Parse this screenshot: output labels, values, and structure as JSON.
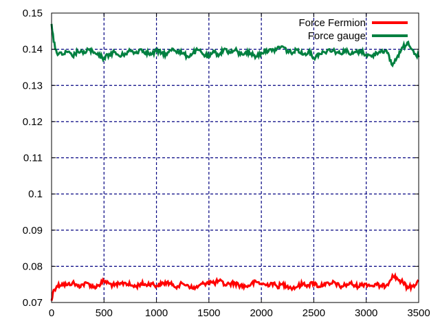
{
  "chart_data": {
    "type": "line",
    "title": "",
    "xlabel": "",
    "ylabel": "",
    "xlim": [
      0,
      3500
    ],
    "ylim": [
      0.07,
      0.15
    ],
    "x_ticks": [
      {
        "value": 0,
        "label": "0"
      },
      {
        "value": 500,
        "label": "500"
      },
      {
        "value": 1000,
        "label": "1000"
      },
      {
        "value": 1500,
        "label": "1500"
      },
      {
        "value": 2000,
        "label": "2000"
      },
      {
        "value": 2500,
        "label": "2500"
      },
      {
        "value": 3000,
        "label": "3000"
      },
      {
        "value": 3500,
        "label": "3500"
      }
    ],
    "y_ticks": [
      {
        "value": 0.07,
        "label": "0.07"
      },
      {
        "value": 0.08,
        "label": "0.08"
      },
      {
        "value": 0.09,
        "label": "0.09"
      },
      {
        "value": 0.1,
        "label": "0.1"
      },
      {
        "value": 0.11,
        "label": "0.11"
      },
      {
        "value": 0.12,
        "label": "0.12"
      },
      {
        "value": 0.13,
        "label": "0.13"
      },
      {
        "value": 0.14,
        "label": "0.14"
      },
      {
        "value": 0.15,
        "label": "0.15"
      }
    ],
    "grid": true,
    "legend_position": "top-right",
    "series": [
      {
        "name": "Force Fermion",
        "color": "#ff0000",
        "x": [
          0,
          20,
          50,
          100,
          150,
          200,
          250,
          300,
          350,
          400,
          450,
          500,
          550,
          600,
          650,
          700,
          750,
          800,
          850,
          900,
          950,
          1000,
          1050,
          1100,
          1150,
          1200,
          1250,
          1300,
          1350,
          1400,
          1450,
          1500,
          1550,
          1600,
          1650,
          1700,
          1750,
          1800,
          1850,
          1900,
          1950,
          2000,
          2050,
          2100,
          2150,
          2200,
          2250,
          2300,
          2350,
          2400,
          2450,
          2500,
          2550,
          2600,
          2650,
          2700,
          2750,
          2800,
          2850,
          2900,
          2950,
          3000,
          3050,
          3100,
          3150,
          3200,
          3250,
          3300,
          3350,
          3400,
          3450,
          3500
        ],
        "y": [
          0.0705,
          0.0735,
          0.0745,
          0.0752,
          0.0748,
          0.0755,
          0.0745,
          0.075,
          0.0753,
          0.0742,
          0.0748,
          0.076,
          0.0752,
          0.0747,
          0.075,
          0.0755,
          0.0748,
          0.0744,
          0.0752,
          0.0749,
          0.0753,
          0.0746,
          0.0751,
          0.0756,
          0.0748,
          0.0745,
          0.0752,
          0.0748,
          0.0738,
          0.0745,
          0.0752,
          0.0758,
          0.0753,
          0.076,
          0.0749,
          0.0752,
          0.0754,
          0.0747,
          0.0744,
          0.075,
          0.0757,
          0.0752,
          0.0748,
          0.0754,
          0.0744,
          0.075,
          0.0746,
          0.074,
          0.0745,
          0.0752,
          0.0748,
          0.0755,
          0.0744,
          0.0752,
          0.0749,
          0.0756,
          0.0743,
          0.0748,
          0.0753,
          0.0745,
          0.0748,
          0.0752,
          0.0746,
          0.0749,
          0.0744,
          0.075,
          0.0775,
          0.0765,
          0.0755,
          0.074,
          0.0748,
          0.0758
        ]
      },
      {
        "name": "Force gauge",
        "color": "#008040",
        "x": [
          0,
          20,
          50,
          100,
          150,
          200,
          250,
          300,
          350,
          400,
          450,
          500,
          550,
          600,
          650,
          700,
          750,
          800,
          850,
          900,
          950,
          1000,
          1050,
          1100,
          1150,
          1200,
          1250,
          1300,
          1350,
          1400,
          1450,
          1500,
          1550,
          1600,
          1650,
          1700,
          1750,
          1800,
          1850,
          1900,
          1950,
          2000,
          2050,
          2100,
          2150,
          2200,
          2250,
          2300,
          2350,
          2400,
          2450,
          2500,
          2550,
          2600,
          2650,
          2700,
          2750,
          2800,
          2850,
          2900,
          2950,
          3000,
          3050,
          3100,
          3150,
          3200,
          3250,
          3300,
          3350,
          3400,
          3450,
          3500
        ],
        "y": [
          0.147,
          0.142,
          0.139,
          0.1385,
          0.1392,
          0.138,
          0.1395,
          0.1388,
          0.14,
          0.139,
          0.1382,
          0.1375,
          0.1386,
          0.1392,
          0.138,
          0.1388,
          0.1396,
          0.139,
          0.14,
          0.1392,
          0.1385,
          0.1395,
          0.139,
          0.1385,
          0.1402,
          0.1395,
          0.1388,
          0.138,
          0.139,
          0.1398,
          0.1385,
          0.1378,
          0.1392,
          0.1385,
          0.1402,
          0.139,
          0.1398,
          0.1385,
          0.1392,
          0.1388,
          0.138,
          0.139,
          0.1398,
          0.1395,
          0.1402,
          0.1408,
          0.1395,
          0.139,
          0.14,
          0.1385,
          0.1395,
          0.1375,
          0.1388,
          0.1392,
          0.14,
          0.1395,
          0.1388,
          0.1398,
          0.1385,
          0.1392,
          0.1395,
          0.1385,
          0.138,
          0.139,
          0.1398,
          0.139,
          0.1355,
          0.1382,
          0.1405,
          0.142,
          0.1395,
          0.1378
        ]
      }
    ]
  }
}
